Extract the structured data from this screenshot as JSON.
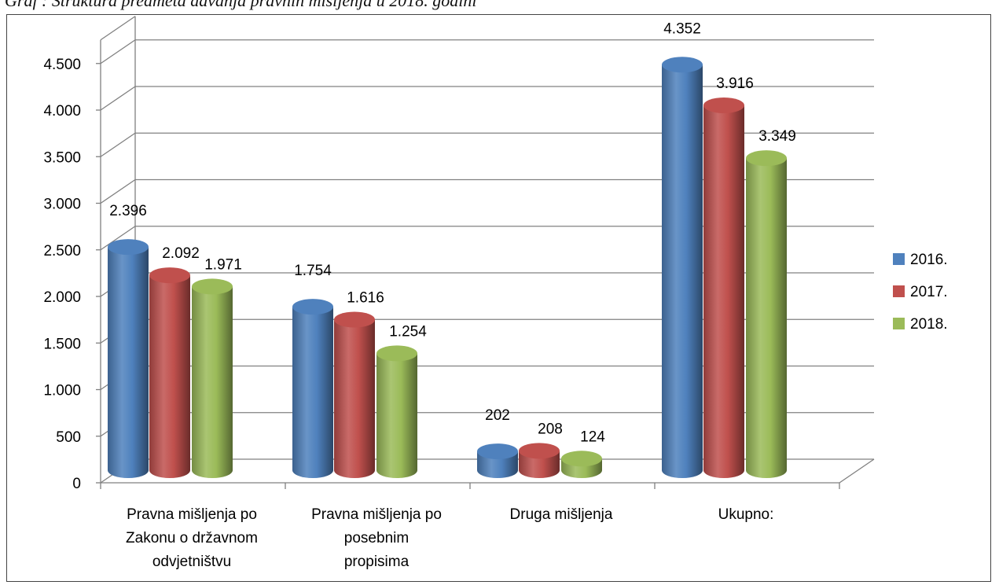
{
  "caption": "Graf : Struktura predmeta davanja pravnih mišljenja u 2018. godini",
  "chart_data": {
    "type": "bar",
    "style": "3d-cylinder",
    "categories": [
      [
        "Pravna mišljenja po",
        "Zakonu o državnom",
        "odvjetništvu"
      ],
      [
        "Pravna mišljenja po",
        "posebnim",
        "propisima"
      ],
      [
        "Druga mišljenja"
      ],
      [
        "Ukupno:"
      ]
    ],
    "series": [
      {
        "name": "2016.",
        "color": "#4F81BD",
        "values": [
          2396,
          1754,
          202,
          4352
        ],
        "labels": [
          "2.396",
          "1.754",
          "202",
          "4.352"
        ]
      },
      {
        "name": "2017.",
        "color": "#C0504D",
        "values": [
          2092,
          1616,
          208,
          3916
        ],
        "labels": [
          "2.092",
          "1.616",
          "208",
          "3.916"
        ]
      },
      {
        "name": "2018.",
        "color": "#9BBB59",
        "values": [
          1971,
          1254,
          124,
          3349
        ],
        "labels": [
          "1.971",
          "1.254",
          "124",
          "3.349"
        ]
      }
    ],
    "yticks": [
      0,
      500,
      1000,
      1500,
      2000,
      2500,
      3000,
      3500,
      4000,
      4500
    ],
    "ytick_labels": [
      "0",
      "500",
      "1.000",
      "1.500",
      "2.000",
      "2.500",
      "3.000",
      "3.500",
      "4.000",
      "4.500"
    ],
    "ylim": [
      0,
      4500
    ],
    "grid": true,
    "legend": "right"
  }
}
